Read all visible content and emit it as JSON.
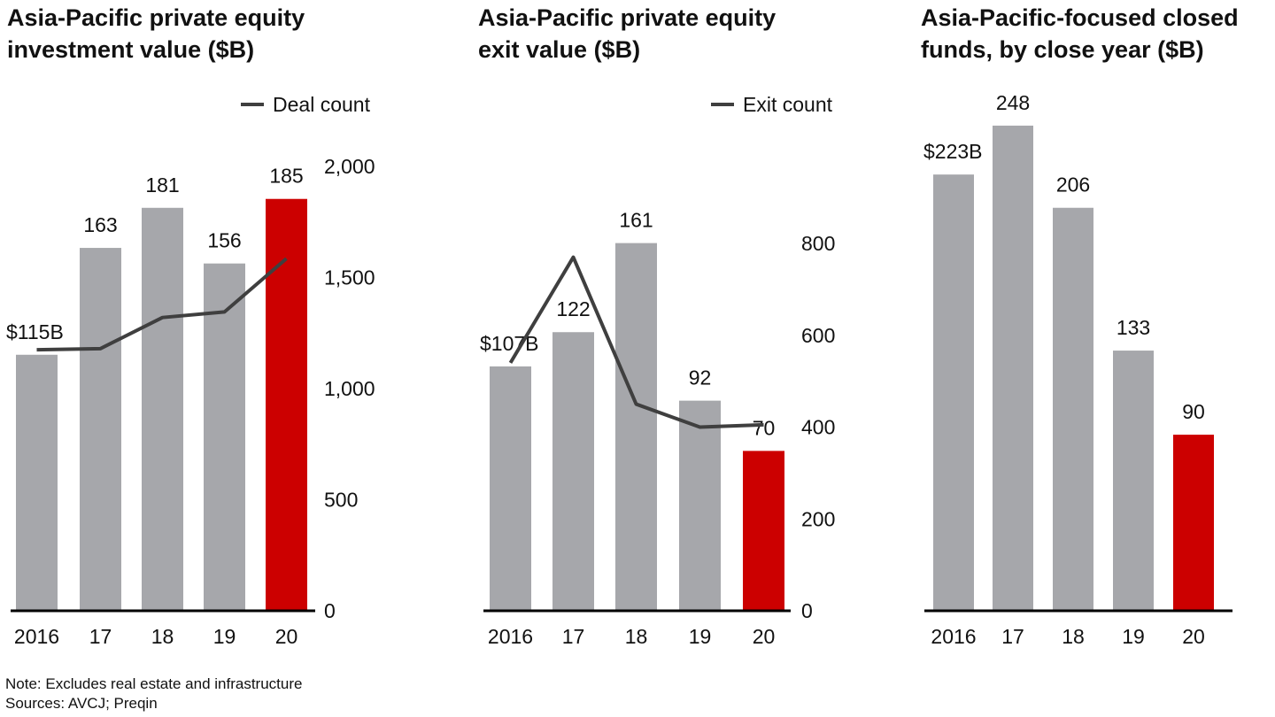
{
  "chart_data": [
    {
      "type": "bar",
      "title": [
        "Asia-Pacific private equity",
        "investment value ($B)"
      ],
      "categories": [
        "2016",
        "17",
        "18",
        "19",
        "20"
      ],
      "values": [
        115,
        163,
        181,
        156,
        185
      ],
      "value_labels": [
        "$115B",
        "163",
        "181",
        "156",
        "185"
      ],
      "bar_colors": [
        "#a6a7ab",
        "#a6a7ab",
        "#a6a7ab",
        "#a6a7ab",
        "#cc0000"
      ],
      "line_series": {
        "name": "Deal count",
        "values": [
          1175,
          1180,
          1320,
          1345,
          1585
        ],
        "color": "#3f3f3f"
      },
      "y2_ticks": [
        "0",
        "500",
        "1,000",
        "1,500",
        "2,000"
      ],
      "y2_tick_values": [
        0,
        500,
        1000,
        1500,
        2000
      ],
      "y2lim": [
        0,
        2000
      ],
      "ylim": [
        0,
        200
      ]
    },
    {
      "type": "bar",
      "title": [
        "Asia-Pacific private equity",
        "exit value ($B)"
      ],
      "categories": [
        "2016",
        "17",
        "18",
        "19",
        "20"
      ],
      "values": [
        107,
        122,
        161,
        92,
        70
      ],
      "value_labels": [
        "$107B",
        "122",
        "161",
        "92",
        "70"
      ],
      "bar_colors": [
        "#a6a7ab",
        "#a6a7ab",
        "#a6a7ab",
        "#a6a7ab",
        "#cc0000"
      ],
      "line_series": {
        "name": "Exit count",
        "values": [
          540,
          770,
          450,
          400,
          405
        ],
        "color": "#3f3f3f"
      },
      "y2_ticks": [
        "0",
        "200",
        "400",
        "600",
        "800"
      ],
      "y2_tick_values": [
        0,
        200,
        400,
        600,
        800
      ],
      "y2lim": [
        0,
        800
      ],
      "ylim": [
        0,
        200
      ]
    },
    {
      "type": "bar",
      "title": [
        "Asia-Pacific-focused closed",
        "funds, by close year ($B)"
      ],
      "categories": [
        "2016",
        "17",
        "18",
        "19",
        "20"
      ],
      "values": [
        223,
        248,
        206,
        133,
        90
      ],
      "value_labels": [
        "$223B",
        "248",
        "206",
        "133",
        "90"
      ],
      "bar_colors": [
        "#a6a7ab",
        "#a6a7ab",
        "#a6a7ab",
        "#a6a7ab",
        "#cc0000"
      ],
      "ylim": [
        0,
        260
      ]
    }
  ],
  "notes": {
    "note": "Note: Excludes real estate and infrastructure",
    "sources": "Sources: AVCJ; Preqin"
  }
}
